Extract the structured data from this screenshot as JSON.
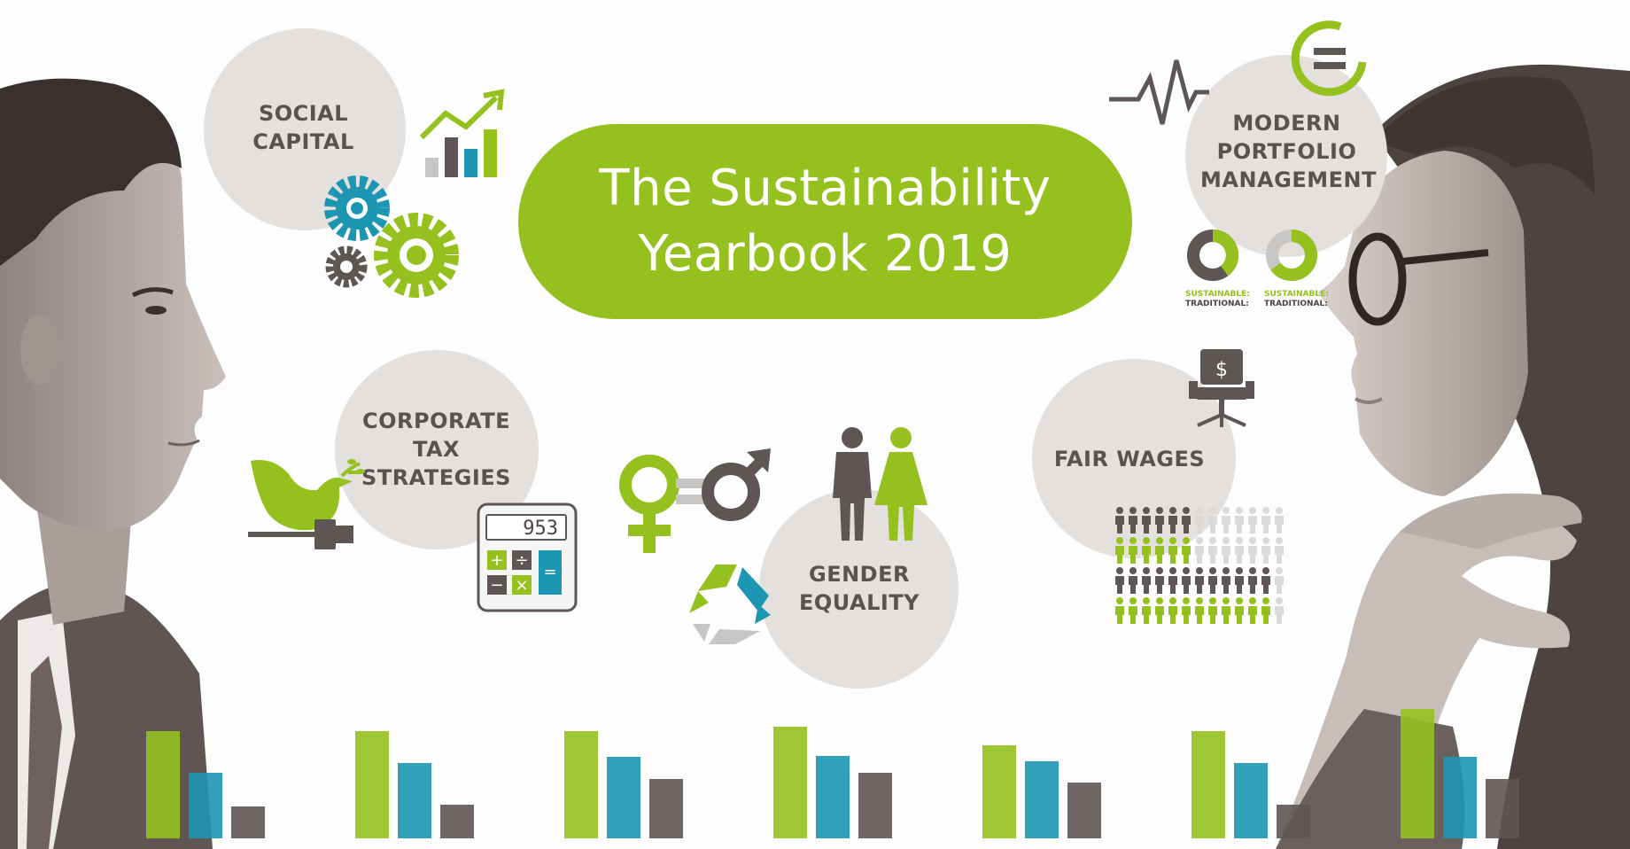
{
  "banner": {
    "title_line1": "The Sustainability",
    "title_line2": "Yearbook 2019"
  },
  "topics": {
    "social_capital": [
      "SOCIAL",
      "CAPITAL"
    ],
    "corporate_tax": [
      "CORPORATE",
      "TAX",
      "STRATEGIES"
    ],
    "gender_equality": [
      "GENDER",
      "EQUALITY"
    ],
    "fair_wages": [
      "FAIR WAGES"
    ],
    "portfolio": [
      "MODERN",
      "PORTFOLIO",
      "MANAGEMENT"
    ]
  },
  "donut_labels": {
    "sustainable": "SUSTAINABLE:",
    "traditional": "TRADITIONAL:"
  },
  "calculator": {
    "display": "953"
  },
  "icons": [
    "growth-chart-icon",
    "gears-icon",
    "dove-icon",
    "gavel-icon",
    "calculator-icon",
    "gender-equal-icon",
    "man-woman-icon",
    "recycle-icon",
    "heartbeat-icon",
    "equals-ring-icon",
    "donut-chart-icon",
    "office-chair-icon",
    "people-grid-icon"
  ],
  "photo_subjects": [
    "man-profile-photo",
    "woman-profile-photo"
  ],
  "colors": {
    "green": "#95c11f",
    "teal": "#1d96b3",
    "dark": "#5e5654",
    "circle": "#e3e0de",
    "text": "#5a5250"
  },
  "bar_groups": [
    [
      121,
      74,
      36
    ],
    [
      121,
      85,
      38
    ],
    [
      121,
      92,
      67
    ],
    [
      126,
      93,
      74
    ],
    [
      105,
      87,
      63
    ],
    [
      121,
      85,
      38
    ],
    [
      146,
      92,
      67
    ]
  ]
}
